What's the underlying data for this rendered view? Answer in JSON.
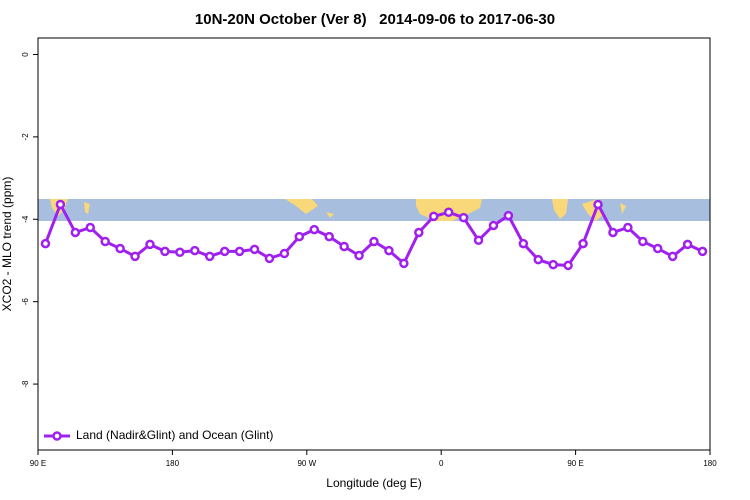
{
  "chart_data": {
    "type": "line",
    "title": "10N-20N October (Ver 8)   2014-09-06 to 2017-06-30",
    "xlabel": "Longitude (deg E)",
    "ylabel": "XCO2 - MLO trend (ppm)",
    "x": [
      95,
      105,
      115,
      125,
      135,
      145,
      155,
      165,
      175,
      185,
      195,
      205,
      215,
      225,
      235,
      245,
      255,
      265,
      275,
      285,
      295,
      305,
      315,
      325,
      335,
      345,
      355,
      365,
      375,
      385,
      395,
      405,
      415,
      425,
      435,
      445,
      455,
      465,
      475,
      485,
      495,
      505,
      515,
      525,
      535
    ],
    "series": [
      {
        "name": "Land (Nadir&Glint) and Ocean (Glint)",
        "color": "#a020f0",
        "values": [
          -4.59,
          -3.64,
          -4.32,
          -4.2,
          -4.54,
          -4.71,
          -4.9,
          -4.61,
          -4.78,
          -4.8,
          -4.76,
          -4.9,
          -4.78,
          -4.78,
          -4.73,
          -4.95,
          -4.83,
          -4.42,
          -4.25,
          -4.42,
          -4.66,
          -4.88,
          -4.54,
          -4.76,
          -5.07,
          -4.32,
          -3.93,
          -3.83,
          -3.96,
          -4.51,
          -4.15,
          -3.91,
          -4.59,
          -4.98,
          -5.1,
          -5.12,
          -4.59,
          -3.64,
          -4.32,
          -4.2,
          -4.54,
          -4.71,
          -4.9,
          -4.61,
          -4.78
        ]
      }
    ],
    "xlim": [
      90,
      540
    ],
    "xticks": [
      {
        "value": 90,
        "label": "90 E"
      },
      {
        "value": 180,
        "label": "180"
      },
      {
        "value": 270,
        "label": "90 W"
      },
      {
        "value": 360,
        "label": "0"
      },
      {
        "value": 450,
        "label": "90 E"
      },
      {
        "value": 540,
        "label": "180"
      }
    ],
    "ylim": [
      -9.6,
      0.4
    ],
    "yticks": [
      0,
      -2,
      -4,
      -6,
      -8
    ],
    "legend": "bottom-left"
  }
}
